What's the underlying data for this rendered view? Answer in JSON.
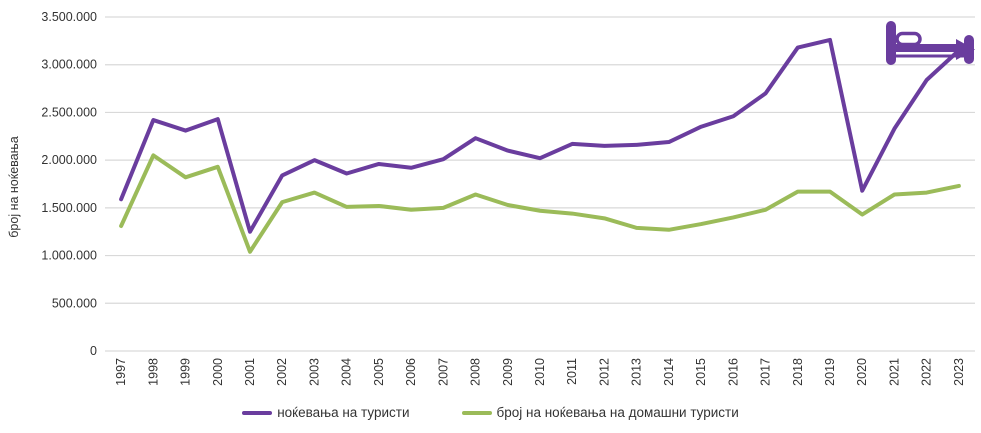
{
  "chart_data": {
    "type": "line",
    "title": "",
    "xlabel": "",
    "ylabel": "број на ноќевања",
    "categories": [
      "1997",
      "1998",
      "1999",
      "2000",
      "2001",
      "2002",
      "2003",
      "2004",
      "2005",
      "2006",
      "2007",
      "2008",
      "2009",
      "2010",
      "2011",
      "2012",
      "2013",
      "2014",
      "2015",
      "2016",
      "2017",
      "2018",
      "2019",
      "2020",
      "2021",
      "2022",
      "2023"
    ],
    "series": [
      {
        "name": "ноќевања на туристи",
        "color": "#6A3D9E",
        "values": [
          1590000,
          2420000,
          2310000,
          2430000,
          1250000,
          1840000,
          2000000,
          1860000,
          1960000,
          1920000,
          2010000,
          2230000,
          2100000,
          2020000,
          2170000,
          2150000,
          2160000,
          2190000,
          2350000,
          2460000,
          2700000,
          3180000,
          3260000,
          1680000,
          2330000,
          2840000,
          3150000
        ]
      },
      {
        "name": "број на ноќевања на домашни туристи",
        "color": "#9BBB59",
        "values": [
          1310000,
          2050000,
          1820000,
          1930000,
          1040000,
          1560000,
          1660000,
          1510000,
          1520000,
          1480000,
          1500000,
          1640000,
          1530000,
          1470000,
          1440000,
          1390000,
          1290000,
          1270000,
          1330000,
          1400000,
          1480000,
          1670000,
          1670000,
          1430000,
          1640000,
          1660000,
          1730000
        ]
      }
    ],
    "ylim": [
      0,
      3500000
    ],
    "y_tick_step": 500000,
    "y_tick_labels": [
      "0",
      "500.000",
      "1.000.000",
      "1.500.000",
      "2.000.000",
      "2.500.000",
      "3.000.000",
      "3.500.000"
    ],
    "grid": true,
    "legend_position": "bottom"
  },
  "icons": {
    "bed": {
      "name": "bed-icon",
      "color": "#6A3D9E"
    }
  },
  "colors": {
    "gridline": "#D9D9D9",
    "text": "#333333",
    "background": "#FFFFFF"
  }
}
